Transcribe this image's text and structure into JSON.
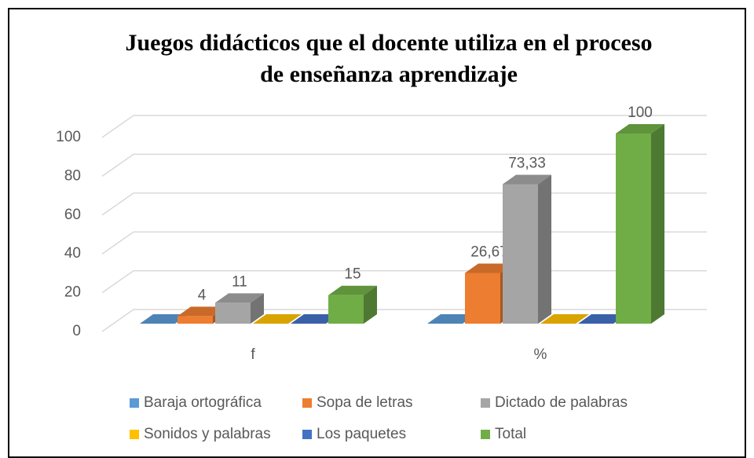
{
  "chart_data": {
    "type": "bar3d",
    "title": [
      "Juegos didácticos que el docente utiliza en el proceso",
      "de enseñanza aprendizaje"
    ],
    "categories": [
      "f",
      "%"
    ],
    "series": [
      {
        "name": "Baraja ortográfica",
        "color": "#5b9bd5",
        "values": [
          0,
          0
        ]
      },
      {
        "name": "Sopa de letras",
        "color": "#ed7d31",
        "values": [
          4,
          26.67
        ],
        "value_labels": [
          "4",
          "26,67"
        ]
      },
      {
        "name": "Dictado de palabras",
        "color": "#a5a5a5",
        "values": [
          11,
          73.33
        ],
        "value_labels": [
          "11",
          "73,33"
        ]
      },
      {
        "name": "Sonidos y palabras",
        "color": "#ffc000",
        "values": [
          0,
          0
        ]
      },
      {
        "name": "Los paquetes",
        "color": "#4472c4",
        "values": [
          0,
          0
        ]
      },
      {
        "name": "Total",
        "color": "#70ad47",
        "values": [
          15,
          100
        ]
      }
    ],
    "ylim": [
      0,
      100
    ],
    "yticks": [
      0,
      20,
      40,
      60,
      80,
      100
    ],
    "grid": true,
    "legend": "bottom"
  }
}
